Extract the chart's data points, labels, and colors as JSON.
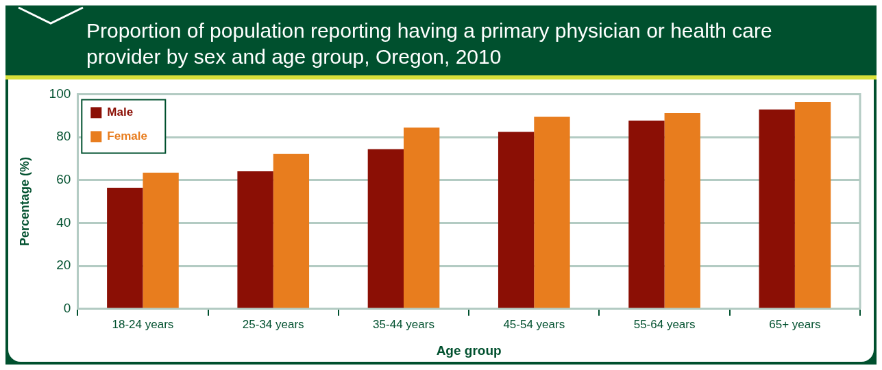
{
  "chart_data": {
    "type": "bar",
    "title": "Proportion of population reporting having a primary physician or health care provider by sex and age group, Oregon, 2010",
    "xlabel": "Age group",
    "ylabel": "Percentage (%)",
    "categories": [
      "18-24 years",
      "25-34 years",
      "35-44 years",
      "45-54 years",
      "55-64 years",
      "65+ years"
    ],
    "series": [
      {
        "name": "Male",
        "color": "#8b0f05",
        "values": [
          56.4,
          64.1,
          74.4,
          82.4,
          87.7,
          92.9
        ]
      },
      {
        "name": "Female",
        "color": "#e87d1e",
        "values": [
          63.4,
          72.1,
          84.4,
          89.4,
          91.2,
          96.3
        ]
      }
    ],
    "ylim": [
      0,
      100
    ],
    "yticks": [
      0,
      20,
      40,
      60,
      80,
      100
    ],
    "grid": "y",
    "legend": "top left"
  }
}
